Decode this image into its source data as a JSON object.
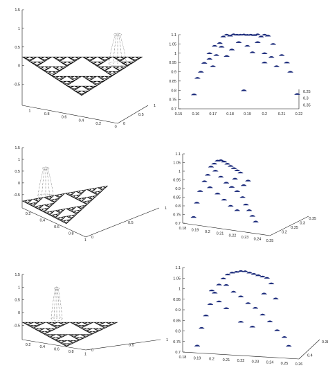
{
  "figure": {
    "ink_color": "#111111",
    "marker_color": "#1a2a7a"
  },
  "chart_data": [
    {
      "type": "scatter",
      "panel": "row1-left",
      "description_shape": "Sierpinski triangle surface with a localized peak",
      "z_ticks": [
        "1.5",
        "1",
        "0.5",
        "0",
        "-0.5"
      ],
      "x_ticks": [
        "1",
        "0.8",
        "0.6",
        "0.4",
        "0.2",
        "0"
      ],
      "y_ticks": [
        "0",
        "0.5",
        "1"
      ],
      "zlim": [
        -0.5,
        1.5
      ]
    },
    {
      "type": "scatter",
      "panel": "row1-right",
      "y_ticks": [
        "1.1",
        "1.05",
        "1",
        "0.95",
        "0.9",
        "0.85",
        "0.8",
        "0.75",
        "0.7"
      ],
      "x_ticks": [
        "0.15",
        "0.16",
        "0.17",
        "0.18",
        "0.19",
        "0.2",
        "0.21",
        "0.22"
      ],
      "z_ticks": [
        "0.35",
        "0.3",
        "0.25"
      ],
      "ylim": [
        0.7,
        1.1
      ],
      "xlim": [
        0.15,
        0.22
      ],
      "points": [
        {
          "x": 0.159,
          "y": 0.778
        },
        {
          "x": 0.161,
          "y": 0.867
        },
        {
          "x": 0.163,
          "y": 0.9
        },
        {
          "x": 0.165,
          "y": 0.948
        },
        {
          "x": 0.168,
          "y": 1.0
        },
        {
          "x": 0.171,
          "y": 1.04
        },
        {
          "x": 0.174,
          "y": 1.055
        },
        {
          "x": 0.176,
          "y": 1.09
        },
        {
          "x": 0.178,
          "y": 1.1
        },
        {
          "x": 0.18,
          "y": 1.095
        },
        {
          "x": 0.182,
          "y": 1.102
        },
        {
          "x": 0.184,
          "y": 1.1
        },
        {
          "x": 0.186,
          "y": 1.1
        },
        {
          "x": 0.188,
          "y": 1.101
        },
        {
          "x": 0.19,
          "y": 1.099
        },
        {
          "x": 0.192,
          "y": 1.1
        },
        {
          "x": 0.194,
          "y": 1.098
        },
        {
          "x": 0.196,
          "y": 1.102
        },
        {
          "x": 0.198,
          "y": 1.09
        },
        {
          "x": 0.2,
          "y": 1.1
        },
        {
          "x": 0.202,
          "y": 1.095
        },
        {
          "x": 0.175,
          "y": 1.035
        },
        {
          "x": 0.172,
          "y": 0.99
        },
        {
          "x": 0.178,
          "y": 0.985
        },
        {
          "x": 0.185,
          "y": 1.06
        },
        {
          "x": 0.19,
          "y": 1.04
        },
        {
          "x": 0.196,
          "y": 1.06
        },
        {
          "x": 0.2,
          "y": 1.0
        },
        {
          "x": 0.204,
          "y": 0.98
        },
        {
          "x": 0.2,
          "y": 0.95
        },
        {
          "x": 0.207,
          "y": 0.93
        },
        {
          "x": 0.205,
          "y": 1.05
        },
        {
          "x": 0.21,
          "y": 0.99
        },
        {
          "x": 0.213,
          "y": 0.95
        },
        {
          "x": 0.215,
          "y": 0.9
        },
        {
          "x": 0.219,
          "y": 0.78
        },
        {
          "x": 0.188,
          "y": 0.8
        },
        {
          "x": 0.181,
          "y": 1.02
        },
        {
          "x": 0.193,
          "y": 1.005
        },
        {
          "x": 0.168,
          "y": 0.97
        },
        {
          "x": 0.17,
          "y": 0.93
        }
      ]
    },
    {
      "type": "scatter",
      "panel": "row2-left",
      "description_shape": "Sierpinski triangle surface with a localized peak",
      "z_ticks": [
        "1.5",
        "1",
        "0.5",
        "0",
        "-0.5"
      ],
      "x_ticks": [
        "0.2",
        "0.4",
        "0.6",
        "0.8",
        "1"
      ],
      "y_ticks": [
        "0",
        "0.5",
        "1"
      ],
      "zlim": [
        -0.5,
        1.5
      ]
    },
    {
      "type": "scatter",
      "panel": "row2-right",
      "y_ticks": [
        "1.1",
        "1.05",
        "1",
        "0.95",
        "0.9",
        "0.85",
        "0.8",
        "0.75",
        "0.7"
      ],
      "x_ticks": [
        "0.18",
        "0.19",
        "0.2",
        "0.21",
        "0.22",
        "0.23",
        "0.24",
        "0.25"
      ],
      "z_ticks": [
        "0.2",
        "0.25",
        "0.3",
        "0.35"
      ],
      "ylim": [
        0.7,
        1.1
      ],
      "xlim": [
        0.18,
        0.26
      ],
      "points": [
        {
          "x": 0.19,
          "y": 0.745
        },
        {
          "x": 0.193,
          "y": 0.83
        },
        {
          "x": 0.196,
          "y": 0.9
        },
        {
          "x": 0.2,
          "y": 0.96
        },
        {
          "x": 0.203,
          "y": 1.0
        },
        {
          "x": 0.206,
          "y": 1.05
        },
        {
          "x": 0.209,
          "y": 1.07
        },
        {
          "x": 0.212,
          "y": 1.09
        },
        {
          "x": 0.215,
          "y": 1.095
        },
        {
          "x": 0.218,
          "y": 1.09
        },
        {
          "x": 0.221,
          "y": 1.08
        },
        {
          "x": 0.224,
          "y": 1.07
        },
        {
          "x": 0.227,
          "y": 1.06
        },
        {
          "x": 0.23,
          "y": 1.05
        },
        {
          "x": 0.233,
          "y": 1.04
        },
        {
          "x": 0.21,
          "y": 1.03
        },
        {
          "x": 0.215,
          "y": 1.0
        },
        {
          "x": 0.22,
          "y": 0.97
        },
        {
          "x": 0.225,
          "y": 0.95
        },
        {
          "x": 0.23,
          "y": 0.93
        },
        {
          "x": 0.235,
          "y": 0.9
        },
        {
          "x": 0.238,
          "y": 0.86
        },
        {
          "x": 0.241,
          "y": 0.83
        },
        {
          "x": 0.244,
          "y": 0.8
        },
        {
          "x": 0.247,
          "y": 0.77
        },
        {
          "x": 0.205,
          "y": 0.93
        },
        {
          "x": 0.212,
          "y": 0.9
        },
        {
          "x": 0.218,
          "y": 0.87
        },
        {
          "x": 0.224,
          "y": 0.84
        },
        {
          "x": 0.23,
          "y": 0.82
        },
        {
          "x": 0.236,
          "y": 0.97
        },
        {
          "x": 0.24,
          "y": 1.0
        },
        {
          "x": 0.228,
          "y": 1.0
        }
      ]
    },
    {
      "type": "scatter",
      "panel": "row3-left",
      "description_shape": "Sierpinski triangle surface with a localized peak",
      "z_ticks": [
        "1.5",
        "1",
        "0.5",
        "0",
        "-0.5"
      ],
      "x_ticks": [
        "0.2",
        "0.4",
        "0.6",
        "0.8",
        "1"
      ],
      "y_ticks": [
        "0",
        "0.5",
        "1"
      ],
      "zlim": [
        -0.5,
        1.5
      ]
    },
    {
      "type": "scatter",
      "panel": "row3-right",
      "y_ticks": [
        "1.1",
        "1.05",
        "1",
        "0.95",
        "0.9",
        "0.85",
        "0.8",
        "0.75",
        "0.7"
      ],
      "x_ticks": [
        "0.18",
        "0.19",
        "0.2",
        "0.21",
        "0.22",
        "0.23",
        "0.24",
        "0.25",
        "0.26"
      ],
      "z_ticks": [
        "0.4",
        "0.38"
      ],
      "ylim": [
        0.7,
        1.1
      ],
      "xlim": [
        0.18,
        0.26
      ],
      "points": [
        {
          "x": 0.19,
          "y": 0.735
        },
        {
          "x": 0.193,
          "y": 0.82
        },
        {
          "x": 0.196,
          "y": 0.88
        },
        {
          "x": 0.199,
          "y": 0.935
        },
        {
          "x": 0.202,
          "y": 0.99
        },
        {
          "x": 0.205,
          "y": 1.03
        },
        {
          "x": 0.208,
          "y": 1.06
        },
        {
          "x": 0.211,
          "y": 1.08
        },
        {
          "x": 0.214,
          "y": 1.09
        },
        {
          "x": 0.217,
          "y": 1.095
        },
        {
          "x": 0.22,
          "y": 1.1
        },
        {
          "x": 0.223,
          "y": 1.1
        },
        {
          "x": 0.226,
          "y": 1.095
        },
        {
          "x": 0.229,
          "y": 1.09
        },
        {
          "x": 0.232,
          "y": 1.085
        },
        {
          "x": 0.235,
          "y": 1.08
        },
        {
          "x": 0.238,
          "y": 1.075
        },
        {
          "x": 0.241,
          "y": 1.05
        },
        {
          "x": 0.21,
          "y": 1.03
        },
        {
          "x": 0.215,
          "y": 1.0
        },
        {
          "x": 0.22,
          "y": 0.98
        },
        {
          "x": 0.225,
          "y": 0.95
        },
        {
          "x": 0.23,
          "y": 0.93
        },
        {
          "x": 0.235,
          "y": 0.9
        },
        {
          "x": 0.24,
          "y": 0.87
        },
        {
          "x": 0.245,
          "y": 0.83
        },
        {
          "x": 0.25,
          "y": 0.8
        },
        {
          "x": 0.253,
          "y": 0.76
        },
        {
          "x": 0.205,
          "y": 0.95
        },
        {
          "x": 0.21,
          "y": 0.92
        },
        {
          "x": 0.22,
          "y": 0.86
        },
        {
          "x": 0.228,
          "y": 0.84
        },
        {
          "x": 0.236,
          "y": 1.0
        },
        {
          "x": 0.244,
          "y": 0.98
        },
        {
          "x": 0.2,
          "y": 1.0
        }
      ]
    }
  ]
}
